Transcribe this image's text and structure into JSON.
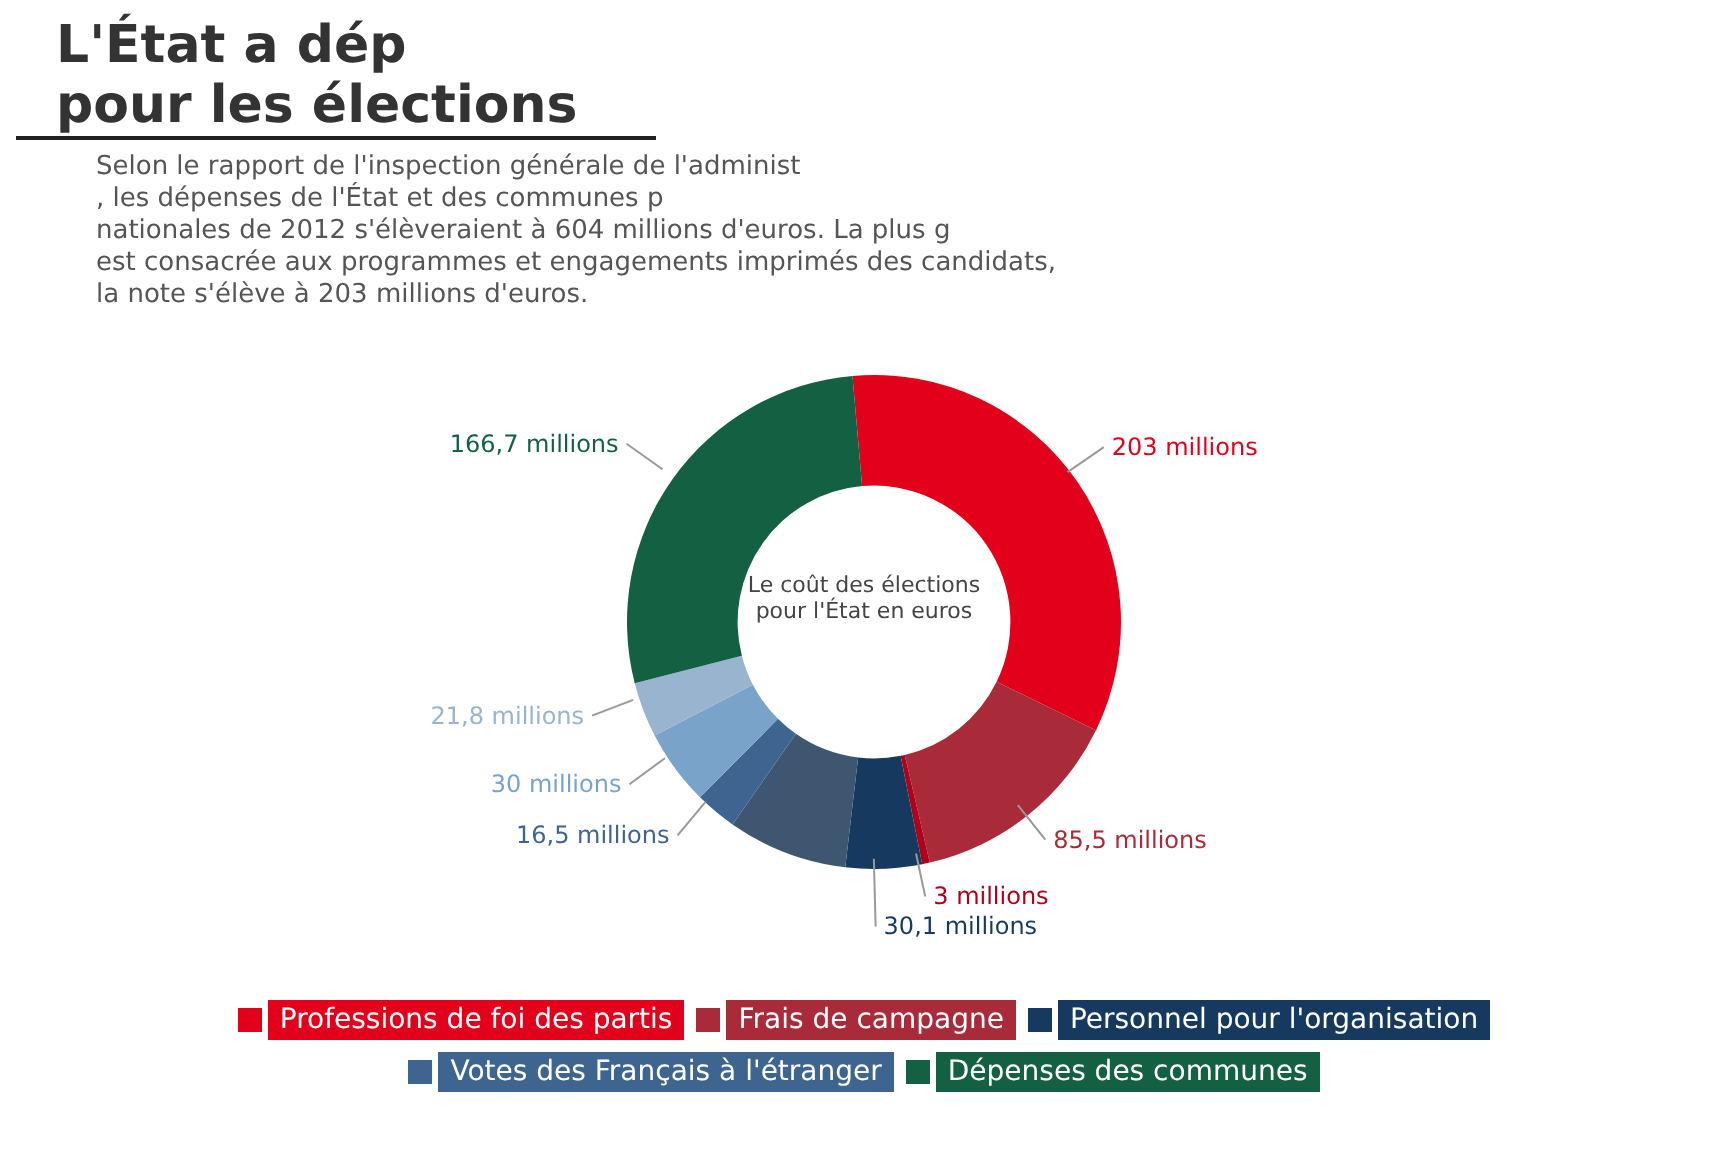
{
  "chart_data": {
    "type": "donut",
    "title": "L'État a dép",
    "subtitle": "pour les élections",
    "annotations": [
      "Selon le rapport de l'inspection générale de l'administ",
      ", les dépenses de l'État et des communes p",
      "nationales de 2012 s'élèveraient à 604 millions d'euros. La plus g",
      "est consacrée aux programmes et engagements imprimés des candidats,",
      "la note s'élève à 203 millions d'euros.",
      "Le coût des élections pour l'État en euros"
    ],
    "categories": [
      "Professions de foi des partis",
      "Frais de campagne",
      null,
      "Personnel pour l'organisation",
      null,
      "Votes des Français à l'étranger",
      null,
      null,
      "Dépenses des communes"
    ],
    "values": [
      203,
      85.5,
      3,
      30.1,
      47.4,
      16.5,
      30,
      21.8,
      166.7
    ],
    "value_labels": [
      "203 millions",
      "85,5 millions",
      "3 millions",
      "30,1 millions",
      null,
      "16,5 millions",
      "30 millions",
      "21,8 millions",
      "166,7 millions"
    ],
    "colors": [
      "#e2001a",
      "#a92a38",
      "#b0001a",
      "#163a5f",
      "#3f5670",
      "#3e6590",
      "#7aa3c9",
      "#98b4cf",
      "#136042"
    ],
    "legend": "bottom"
  }
}
